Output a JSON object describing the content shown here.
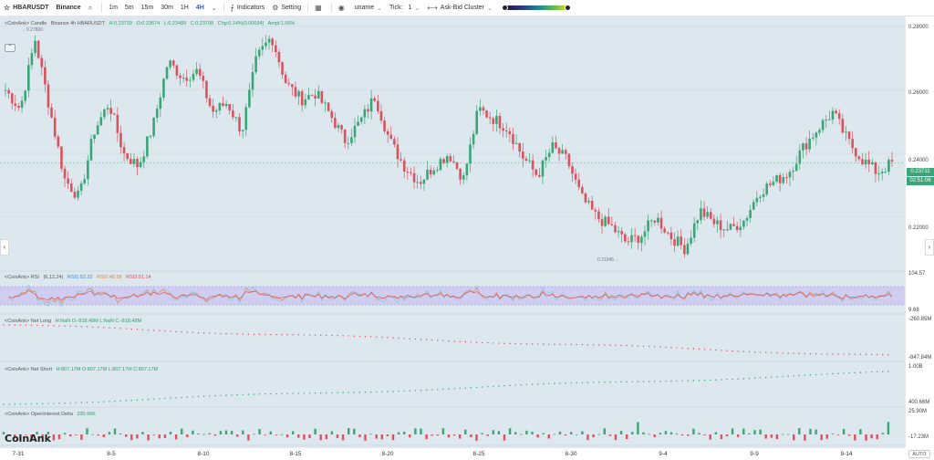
{
  "toolbar": {
    "symbol": "HBARUSDT",
    "exchange": "Binance",
    "intervals": [
      "1m",
      "5m",
      "15m",
      "30m",
      "1H",
      "4H"
    ],
    "active_interval": "4H",
    "indicators_label": "Indicators",
    "setting_label": "Setting",
    "uname_label": "uname",
    "tick_label": "Tick:",
    "tick_value": "1",
    "cluster_label": "Ask-Bid Cluster"
  },
  "main_legend": {
    "source": "<CoinAnk> Candle",
    "market": "Binance 4h HBARUSDT",
    "high": "H:0.23739",
    "open": "O:0.23674",
    "low": "L:0.23489",
    "close": "C:0.23708",
    "change": "Chg:0.14%(0.00034)",
    "amplitude": "Ampl:1.06%"
  },
  "extremes": {
    "high": "0.27800",
    "low": "0.21045"
  },
  "price_axis": {
    "ticks": [
      "0.28000",
      "0.26000",
      "0.24000",
      "0.22000"
    ],
    "current_price": "0.23711",
    "countdown": "02:51:06"
  },
  "rsi": {
    "title": "<CoinAnk> RSI",
    "params": "(6,12,24)",
    "rsi1": "RSI1:52.22",
    "rsi2": "RSI2:48.58",
    "rsi3": "RSI3:51.14",
    "axis_top": "104.57",
    "axis_bottom": "9.68"
  },
  "net_long": {
    "title": "<CoinAnk> Net Long",
    "values": "H:NaN  O:-818.49M  L:NaN  C:-818.49M",
    "axis_top": "-260.85M",
    "axis_bottom": "-847.84M"
  },
  "net_short": {
    "title": "<CoinAnk> Net Short",
    "values": "H:807.17M  O:807.17M  L:807.17M  C:807.17M",
    "axis_top": "1.00B",
    "axis_bottom": "400.66M"
  },
  "oi_delta": {
    "title": "<CoinAnk> OpenInterest Delta",
    "value": "330.96K",
    "axis_top": "25.90M",
    "axis_bottom": "-17.23M"
  },
  "time_axis": [
    "7-31",
    "8-5",
    "8-10",
    "8-15",
    "8-20",
    "8-25",
    "8-30",
    "9-4",
    "9-9",
    "9-14"
  ],
  "auto_label": "AUTO",
  "watermark": "CoinAnk",
  "colors": {
    "up": "#3aa676",
    "down": "#d9535f",
    "rsi_band": "#c9c4f0",
    "bg": "#dde7ee"
  },
  "chart_data": {
    "type": "candlestick",
    "interval": "4h",
    "price_range": [
      0.205,
      0.282
    ],
    "path_anchors": [
      0.26,
      0.254,
      0.276,
      0.254,
      0.232,
      0.226,
      0.247,
      0.256,
      0.24,
      0.236,
      0.249,
      0.269,
      0.264,
      0.266,
      0.253,
      0.256,
      0.247,
      0.27,
      0.277,
      0.262,
      0.257,
      0.259,
      0.252,
      0.244,
      0.25,
      0.258,
      0.244,
      0.236,
      0.231,
      0.236,
      0.24,
      0.232,
      0.254,
      0.251,
      0.248,
      0.239,
      0.233,
      0.242,
      0.238,
      0.226,
      0.22,
      0.217,
      0.212,
      0.214,
      0.22,
      0.214,
      0.21,
      0.222,
      0.218,
      0.216,
      0.219,
      0.228,
      0.231,
      0.234,
      0.242,
      0.248,
      0.253,
      0.244,
      0.238,
      0.234,
      0.237
    ]
  }
}
